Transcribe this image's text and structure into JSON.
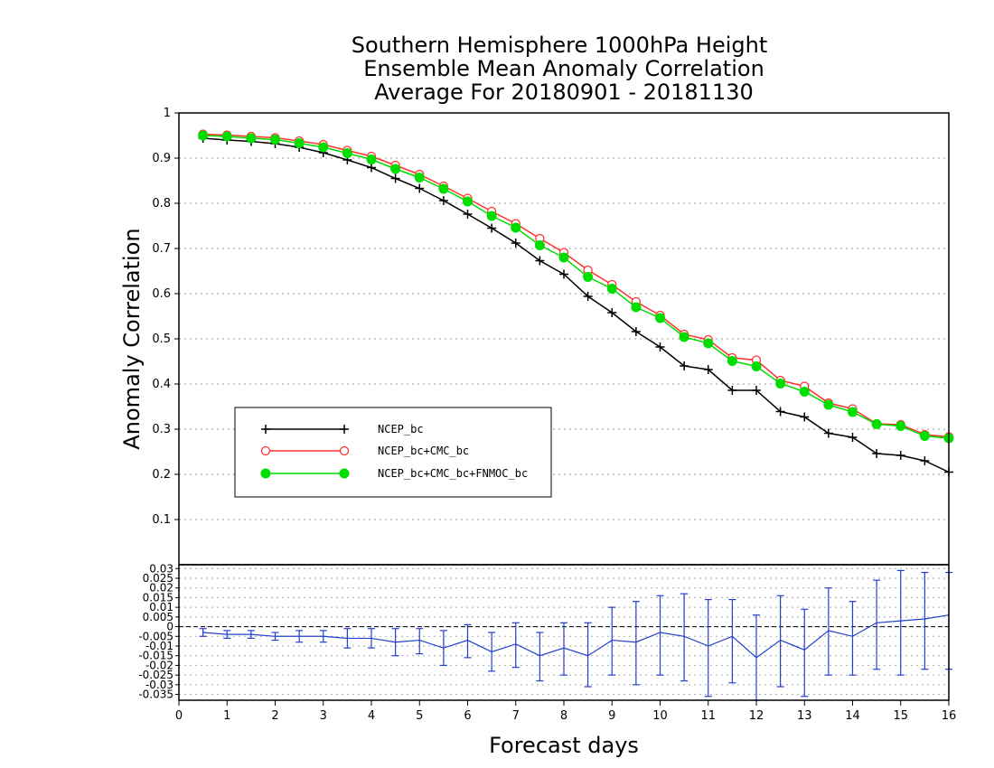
{
  "chart_data": [
    {
      "type": "line",
      "title_lines": [
        "Southern Hemisphere 1000hPa Height",
        "Ensemble Mean Anomaly Correlation",
        "Average For 20180901 - 20181130"
      ],
      "xlabel": "Forecast days",
      "ylabel": "Anomaly Correlation",
      "xlim": [
        0,
        16
      ],
      "ylim": [
        0,
        1
      ],
      "x_ticks": [
        "0",
        "1",
        "2",
        "3",
        "4",
        "5",
        "6",
        "7",
        "8",
        "9",
        "10",
        "11",
        "12",
        "13",
        "14",
        "15",
        "16"
      ],
      "y_ticks": [
        "0.1",
        "0.2",
        "0.3",
        "0.4",
        "0.5",
        "0.6",
        "0.7",
        "0.8",
        "0.9",
        "1"
      ],
      "grid": true,
      "legend_position": "lower-left",
      "x": [
        0.5,
        1,
        1.5,
        2,
        2.5,
        3,
        3.5,
        4,
        4.5,
        5,
        5.5,
        6,
        6.5,
        7,
        7.5,
        8,
        8.5,
        9,
        9.5,
        10,
        10.5,
        11,
        11.5,
        12,
        12.5,
        13,
        13.5,
        14,
        14.5,
        15,
        15.5,
        16
      ],
      "series": [
        {
          "name": "NCEP_bc",
          "color": "#000000",
          "marker": "plus",
          "values": [
            0.944,
            0.94,
            0.937,
            0.932,
            0.924,
            0.912,
            0.896,
            0.879,
            0.855,
            0.833,
            0.806,
            0.776,
            0.745,
            0.712,
            0.673,
            0.643,
            0.594,
            0.558,
            0.516,
            0.482,
            0.44,
            0.432,
            0.386,
            0.386,
            0.339,
            0.327,
            0.291,
            0.282,
            0.246,
            0.242,
            0.23,
            0.205
          ]
        },
        {
          "name": "NCEP_bc+CMC_bc",
          "color": "#ff3030",
          "marker": "open-circle",
          "values": [
            0.953,
            0.951,
            0.948,
            0.945,
            0.938,
            0.93,
            0.917,
            0.904,
            0.884,
            0.864,
            0.838,
            0.811,
            0.782,
            0.755,
            0.722,
            0.691,
            0.652,
            0.62,
            0.582,
            0.552,
            0.51,
            0.498,
            0.458,
            0.453,
            0.408,
            0.395,
            0.358,
            0.345,
            0.312,
            0.31,
            0.288,
            0.283
          ]
        },
        {
          "name": "NCEP_bc+CMC_bc+FNMOC_bc",
          "color": "#00dd00",
          "marker": "filled-circle",
          "values": [
            0.95,
            0.948,
            0.944,
            0.941,
            0.933,
            0.924,
            0.911,
            0.897,
            0.876,
            0.857,
            0.832,
            0.804,
            0.772,
            0.746,
            0.707,
            0.68,
            0.637,
            0.611,
            0.57,
            0.546,
            0.504,
            0.49,
            0.451,
            0.439,
            0.401,
            0.383,
            0.354,
            0.338,
            0.311,
            0.307,
            0.285,
            0.28
          ]
        }
      ]
    },
    {
      "type": "line",
      "ylim": [
        -0.038,
        0.032
      ],
      "y_ticks": [
        "-0.035",
        "-0.03",
        "-0.025",
        "-0.02",
        "-0.015",
        "-0.01",
        "-0.005",
        "0",
        "0.005",
        "0.01",
        "0.015",
        "0.02",
        "0.025",
        "0.03"
      ],
      "zero_line": true,
      "grid": true,
      "color": "#2040cc",
      "x": [
        0.5,
        1,
        1.5,
        2,
        2.5,
        3,
        3.5,
        4,
        4.5,
        5,
        5.5,
        6,
        6.5,
        7,
        7.5,
        8,
        8.5,
        9,
        9.5,
        10,
        10.5,
        11,
        11.5,
        12,
        12.5,
        13,
        13.5,
        14,
        14.5,
        15,
        15.5,
        16
      ],
      "values": [
        -0.003,
        -0.004,
        -0.004,
        -0.005,
        -0.005,
        -0.005,
        -0.006,
        -0.006,
        -0.008,
        -0.007,
        -0.011,
        -0.007,
        -0.013,
        -0.009,
        -0.015,
        -0.011,
        -0.015,
        -0.007,
        -0.008,
        -0.003,
        -0.005,
        -0.01,
        -0.005,
        -0.016,
        -0.007,
        -0.012,
        -0.002,
        -0.005,
        0.002,
        0.003,
        0.004,
        0.006
      ],
      "error_low": [
        -0.005,
        -0.006,
        -0.006,
        -0.007,
        -0.008,
        -0.008,
        -0.011,
        -0.011,
        -0.015,
        -0.014,
        -0.02,
        -0.016,
        -0.023,
        -0.021,
        -0.028,
        -0.025,
        -0.031,
        -0.025,
        -0.03,
        -0.025,
        -0.028,
        -0.036,
        -0.029,
        -0.04,
        -0.031,
        -0.036,
        -0.025,
        -0.025,
        -0.022,
        -0.025,
        -0.022,
        -0.022
      ],
      "error_high": [
        -0.001,
        -0.002,
        -0.002,
        -0.003,
        -0.002,
        -0.002,
        -0.001,
        -0.001,
        -0.001,
        -0.001,
        -0.002,
        0.001,
        -0.003,
        0.002,
        -0.003,
        0.002,
        0.002,
        0.01,
        0.013,
        0.016,
        0.017,
        0.014,
        0.014,
        0.006,
        0.016,
        0.009,
        0.02,
        0.013,
        0.024,
        0.029,
        0.028,
        0.028
      ]
    }
  ]
}
